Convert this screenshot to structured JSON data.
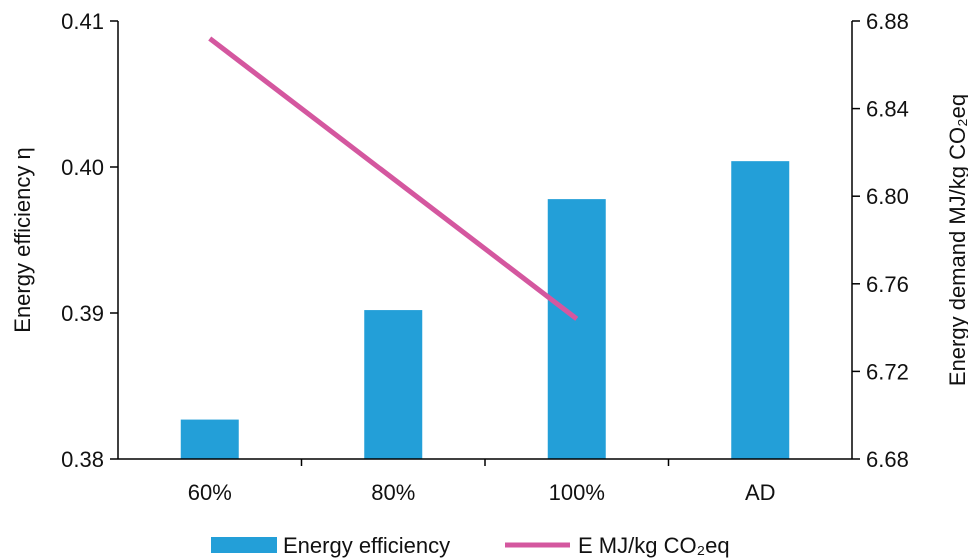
{
  "chart_data": {
    "type": "bar+line",
    "categories": [
      "60%",
      "80%",
      "100%",
      "AD"
    ],
    "series": [
      {
        "name": "Energy efficiency",
        "type": "bar",
        "axis": "left",
        "color": "#239FD8",
        "values": [
          0.3827,
          0.3902,
          0.3978,
          0.4004
        ]
      },
      {
        "name": "E MJ/kg CO₂eq",
        "type": "line",
        "axis": "right",
        "color": "#D4579F",
        "values": [
          6.872,
          null,
          6.744,
          null
        ],
        "points": [
          {
            "category": "60%",
            "value": 6.872
          },
          {
            "category": "100%",
            "value": 6.744
          }
        ]
      }
    ],
    "y_left": {
      "label": "Energy efficiency η",
      "ylim": [
        0.38,
        0.41
      ],
      "ticks": [
        "0.38",
        "0.39",
        "0.40",
        "0.41"
      ]
    },
    "y_right": {
      "label": "Energy demand MJ/kg CO₂eq",
      "ylim": [
        6.68,
        6.88
      ],
      "ticks": [
        "6.68",
        "6.72",
        "6.76",
        "6.80",
        "6.84",
        "6.88"
      ]
    },
    "legend": {
      "position": "bottom",
      "items": [
        "Energy efficiency",
        "E MJ/kg CO₂eq"
      ]
    },
    "grid": false
  }
}
